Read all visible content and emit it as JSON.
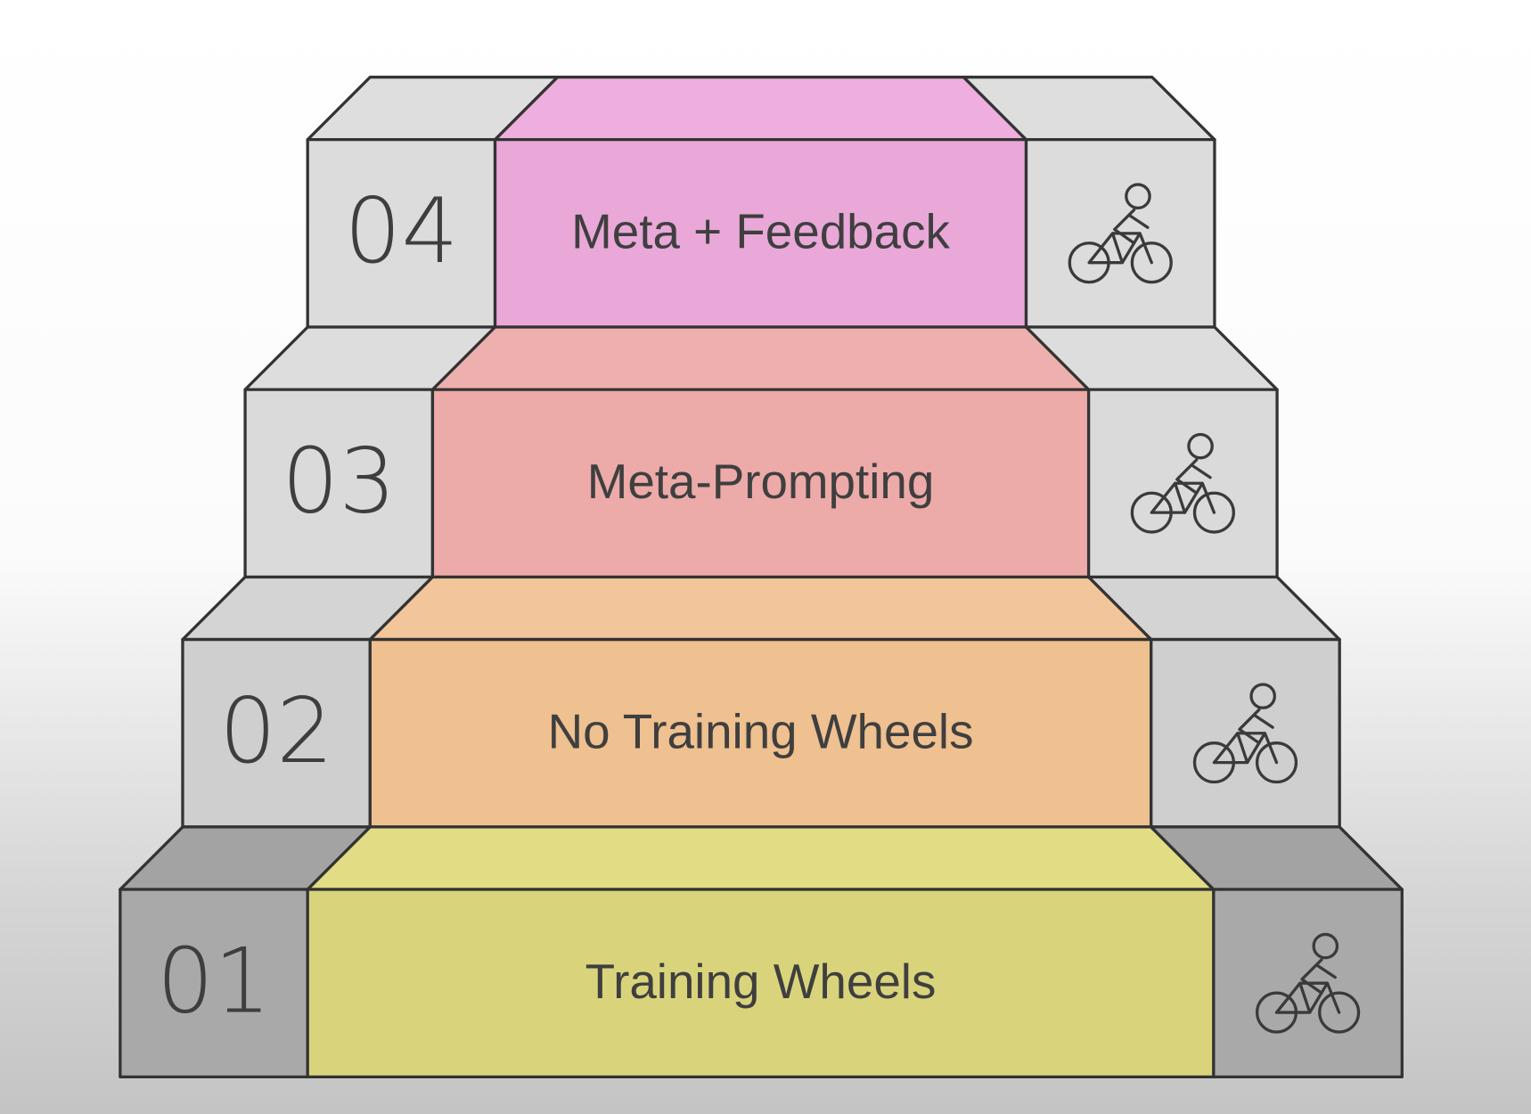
{
  "steps": [
    {
      "number": "01",
      "label": "Training Wheels"
    },
    {
      "number": "02",
      "label": "No Training Wheels"
    },
    {
      "number": "03",
      "label": "Meta-Prompting"
    },
    {
      "number": "04",
      "label": "Meta + Feedback"
    }
  ]
}
